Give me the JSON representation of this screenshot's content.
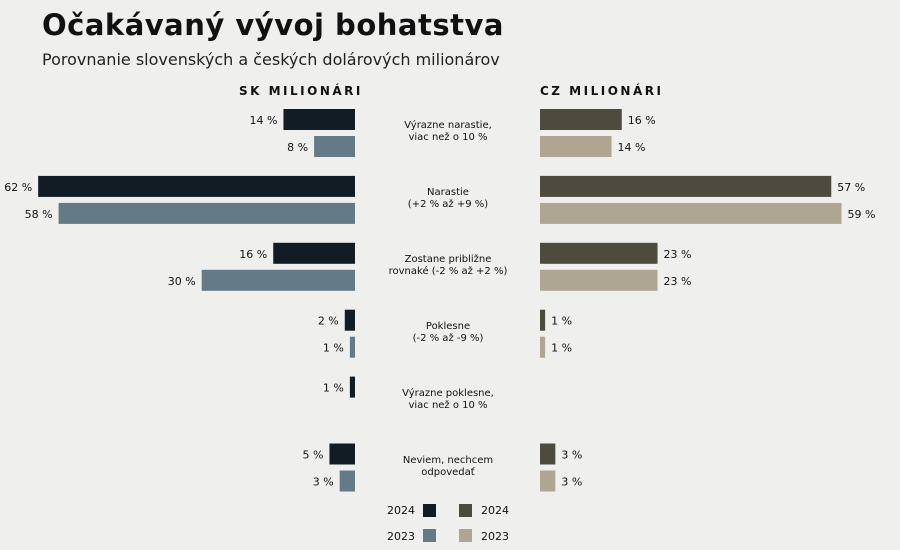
{
  "title": "Očakávaný vývoj bohatstva",
  "subtitle": "Porovnanie slovenských a českých dolárových milionárov",
  "chart_data": {
    "type": "bar",
    "orientation": "horizontal-butterfly",
    "unit": "%",
    "categories": [
      "Výrazne narastie,\nviac než o 10 %",
      "Narastie\n(+2 % až +9 %)",
      "Zostane približne\nrovnaké (-2 % až +2 %)",
      "Poklesne\n(-2 % až -9 %)",
      "Výrazne poklesne,\nviac než o 10 %",
      "Neviem, nechcem\nodpovedať"
    ],
    "panels": [
      {
        "title": "SK MILIONÁRI",
        "side": "left",
        "series": [
          {
            "name": "2024",
            "color": "#121c24",
            "values": [
              14,
              62,
              16,
              2,
              1,
              5
            ]
          },
          {
            "name": "2023",
            "color": "#647a86",
            "values": [
              8,
              58,
              30,
              1,
              null,
              3
            ]
          }
        ]
      },
      {
        "title": "CZ MILIONÁRI",
        "side": "right",
        "series": [
          {
            "name": "2024",
            "color": "#4d4a3e",
            "values": [
              16,
              57,
              23,
              1,
              null,
              3
            ]
          },
          {
            "name": "2023",
            "color": "#aea593",
            "values": [
              14,
              59,
              23,
              1,
              null,
              3
            ]
          }
        ]
      }
    ],
    "legend_placement": "bottom-center",
    "grid": false
  }
}
